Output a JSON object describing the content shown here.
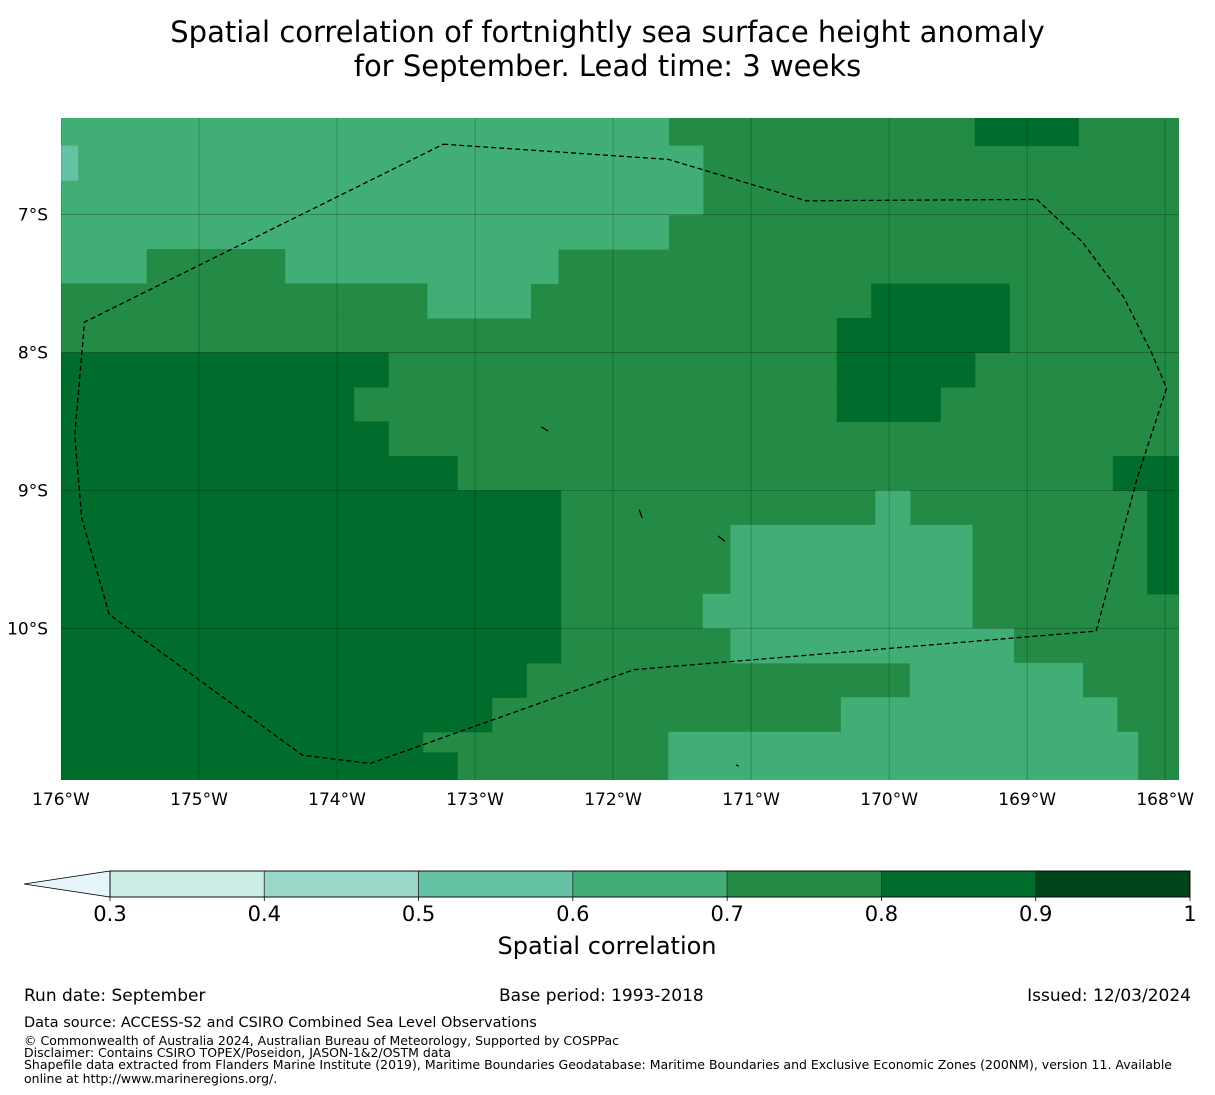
{
  "title": {
    "line1": "Spatial correlation of fortnightly sea surface height anomaly",
    "line2": "for September. Lead time: 3 weeks"
  },
  "map": {
    "lon_min": -176,
    "lon_max": -167.9,
    "lat_min": -11.1,
    "lat_max": -6.3,
    "grid": true,
    "x_ticks": [
      {
        "lon": -176,
        "label": "176°W"
      },
      {
        "lon": -175,
        "label": "175°W"
      },
      {
        "lon": -174,
        "label": "174°W"
      },
      {
        "lon": -173,
        "label": "173°W"
      },
      {
        "lon": -172,
        "label": "172°W"
      },
      {
        "lon": -171,
        "label": "171°W"
      },
      {
        "lon": -170,
        "label": "170°W"
      },
      {
        "lon": -169,
        "label": "169°W"
      },
      {
        "lon": -168,
        "label": "168°W"
      }
    ],
    "y_ticks": [
      {
        "lat": -7,
        "label": "7°S"
      },
      {
        "lat": -8,
        "label": "8°S"
      },
      {
        "lat": -9,
        "label": "9°S"
      },
      {
        "lat": -10,
        "label": "10°S"
      }
    ],
    "boundary_name": "EEZ boundary",
    "boundary": [
      [
        -173.23,
        -6.49
      ],
      [
        -171.6,
        -6.6
      ],
      [
        -170.6,
        -6.9
      ],
      [
        -168.93,
        -6.89
      ],
      [
        -168.6,
        -7.2
      ],
      [
        -168.3,
        -7.6
      ],
      [
        -168.1,
        -8.0
      ],
      [
        -167.99,
        -8.26
      ],
      [
        -168.2,
        -8.9
      ],
      [
        -168.5,
        -10.02
      ],
      [
        -171.85,
        -10.3
      ],
      [
        -173.76,
        -10.98
      ],
      [
        -174.25,
        -10.92
      ],
      [
        -175.65,
        -9.9
      ],
      [
        -175.85,
        -9.2
      ],
      [
        -175.9,
        -8.6
      ],
      [
        -175.83,
        -7.78
      ],
      [
        -173.23,
        -6.49
      ]
    ],
    "islands": [
      [
        [
          -172.52,
          -8.54
        ],
        [
          -172.47,
          -8.57
        ]
      ],
      [
        [
          -171.81,
          -9.14
        ],
        [
          -171.79,
          -9.2
        ]
      ],
      [
        [
          -171.24,
          -9.33
        ],
        [
          -171.19,
          -9.37
        ]
      ],
      [
        [
          -171.11,
          -10.99
        ],
        [
          -171.09,
          -11.0
        ]
      ]
    ]
  },
  "levels": {
    "bounds": [
      0.3,
      0.4,
      0.5,
      0.6,
      0.7,
      0.8,
      0.9,
      1.0
    ],
    "colors": [
      "#e6f5f9",
      "#ccece6",
      "#99d8c9",
      "#66c2a4",
      "#41ae76",
      "#238b45",
      "#006d2c",
      "#00441b"
    ]
  },
  "colorbar": {
    "title": "Spatial correlation",
    "tick_labels": [
      "0.3",
      "0.4",
      "0.5",
      "0.6",
      "0.7",
      "0.8",
      "0.9",
      "1"
    ],
    "extend": "min"
  },
  "regions": [
    {
      "level": 0.65,
      "cells": [
        [
          -176,
          -6.3,
          -171.6,
          -6.5
        ],
        [
          -176,
          -6.5,
          -171.35,
          -7.0
        ],
        [
          -176,
          -7.0,
          -171.6,
          -7.25
        ],
        [
          -176,
          -7.25,
          -172.4,
          -7.5
        ],
        [
          -173.35,
          -7.5,
          -172.6,
          -7.75
        ],
        [
          -170.1,
          -9.0,
          -169.85,
          -9.25
        ],
        [
          -171.15,
          -9.25,
          -169.4,
          -10.0
        ],
        [
          -171.35,
          -9.75,
          -171.15,
          -10.0
        ],
        [
          -171.15,
          -10.0,
          -169.1,
          -10.25
        ],
        [
          -169.85,
          -10.25,
          -168.6,
          -10.5
        ],
        [
          -170.35,
          -10.5,
          -168.35,
          -10.75
        ],
        [
          -171.6,
          -10.75,
          -168.2,
          -11.1
        ]
      ]
    },
    {
      "level": 0.55,
      "cells": [
        [
          -176,
          -6.5,
          -175.88,
          -6.75
        ]
      ]
    },
    {
      "level": 0.75,
      "cells": [
        [
          -176,
          -7.5,
          -173.35,
          -7.75
        ],
        [
          -175.38,
          -7.25,
          -174.38,
          -7.5
        ]
      ]
    },
    {
      "level": 0.85,
      "cells": [
        [
          -169.38,
          -6.3,
          -168.63,
          -6.5
        ],
        [
          -170.13,
          -7.5,
          -169.13,
          -7.75
        ],
        [
          -170.38,
          -7.75,
          -169.13,
          -8.0
        ],
        [
          -170.38,
          -8.0,
          -169.38,
          -8.25
        ],
        [
          -170.38,
          -8.25,
          -169.63,
          -8.5
        ],
        [
          -168.38,
          -8.75,
          -167.9,
          -9.0
        ],
        [
          -168.13,
          -9.0,
          -167.9,
          -9.75
        ],
        [
          -176,
          -8.0,
          -173.63,
          -8.25
        ],
        [
          -176,
          -8.25,
          -173.88,
          -8.5
        ],
        [
          -176,
          -8.5,
          -173.63,
          -8.75
        ],
        [
          -176,
          -8.75,
          -173.13,
          -9.0
        ],
        [
          -176,
          -9.0,
          -172.38,
          -10.25
        ],
        [
          -176,
          -10.25,
          -172.63,
          -10.5
        ],
        [
          -176,
          -10.5,
          -172.88,
          -10.75
        ],
        [
          -176,
          -10.75,
          -173.38,
          -10.9
        ],
        [
          -176,
          -10.9,
          -173.13,
          -11.1
        ]
      ]
    }
  ],
  "footer": {
    "run_date": "Run date: September",
    "base_period": "Base period: 1993-2018",
    "issued": "Issued: 12/03/2024",
    "data_source": "Data source: ACCESS-S2 and CSIRO Combined Sea Level Observations",
    "copyright": "© Commonwealth of Australia 2024, Australian Bureau of Meteorology, Supported by COSPPac",
    "disclaimer": "Disclaimer: Contains CSIRO TOPEX/Poseidon, JASON-1&2/OSTM data",
    "shapefile": "Shapefile data extracted from Flanders Marine Institute (2019), Maritime Boundaries Geodatabase: Maritime Boundaries and Exclusive Economic Zones (200NM), version 11. Available online at http://www.marineregions.org/."
  }
}
